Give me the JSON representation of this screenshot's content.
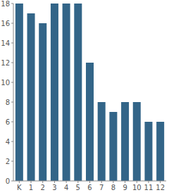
{
  "chart_data": {
    "type": "bar",
    "categories": [
      "K",
      "1",
      "2",
      "3",
      "4",
      "5",
      "6",
      "7",
      "8",
      "9",
      "10",
      "11",
      "12"
    ],
    "values": [
      18,
      17,
      16,
      18,
      18,
      18,
      12,
      8,
      7,
      8,
      8,
      6,
      6
    ],
    "color": "#336588",
    "ylim": [
      0,
      18
    ],
    "yticks": [
      0,
      2,
      4,
      6,
      8,
      10,
      12,
      14,
      16,
      18
    ],
    "grid": false
  }
}
